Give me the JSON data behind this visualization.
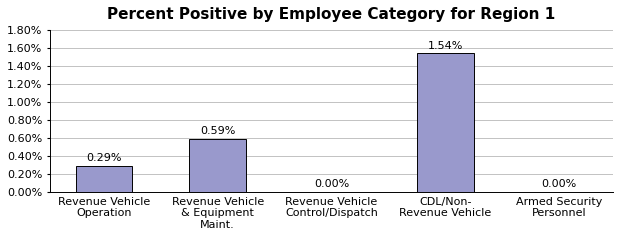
{
  "title": "Percent Positive by Employee Category for Region 1",
  "categories": [
    "Revenue Vehicle\nOperation",
    "Revenue Vehicle\n& Equipment\nMaint.",
    "Revenue Vehicle\nControl/Dispatch",
    "CDL/Non-\nRevenue Vehicle",
    "Armed Security\nPersonnel"
  ],
  "values": [
    0.0029,
    0.0059,
    0.0,
    0.0154,
    0.0
  ],
  "labels": [
    "0.29%",
    "0.59%",
    "0.00%",
    "1.54%",
    "0.00%"
  ],
  "bar_color": "#9999CC",
  "bar_edge_color": "#000000",
  "ylim": [
    0,
    0.018
  ],
  "yticks": [
    0.0,
    0.002,
    0.004,
    0.006,
    0.008,
    0.01,
    0.012,
    0.014,
    0.016,
    0.018
  ],
  "ytick_labels": [
    "0.00%",
    "0.20%",
    "0.40%",
    "0.60%",
    "0.80%",
    "1.00%",
    "1.20%",
    "1.40%",
    "1.60%",
    "1.80%"
  ],
  "background_color": "#FFFFFF",
  "grid_color": "#AAAAAA",
  "title_fontsize": 11,
  "tick_fontsize": 8,
  "label_fontsize": 8
}
